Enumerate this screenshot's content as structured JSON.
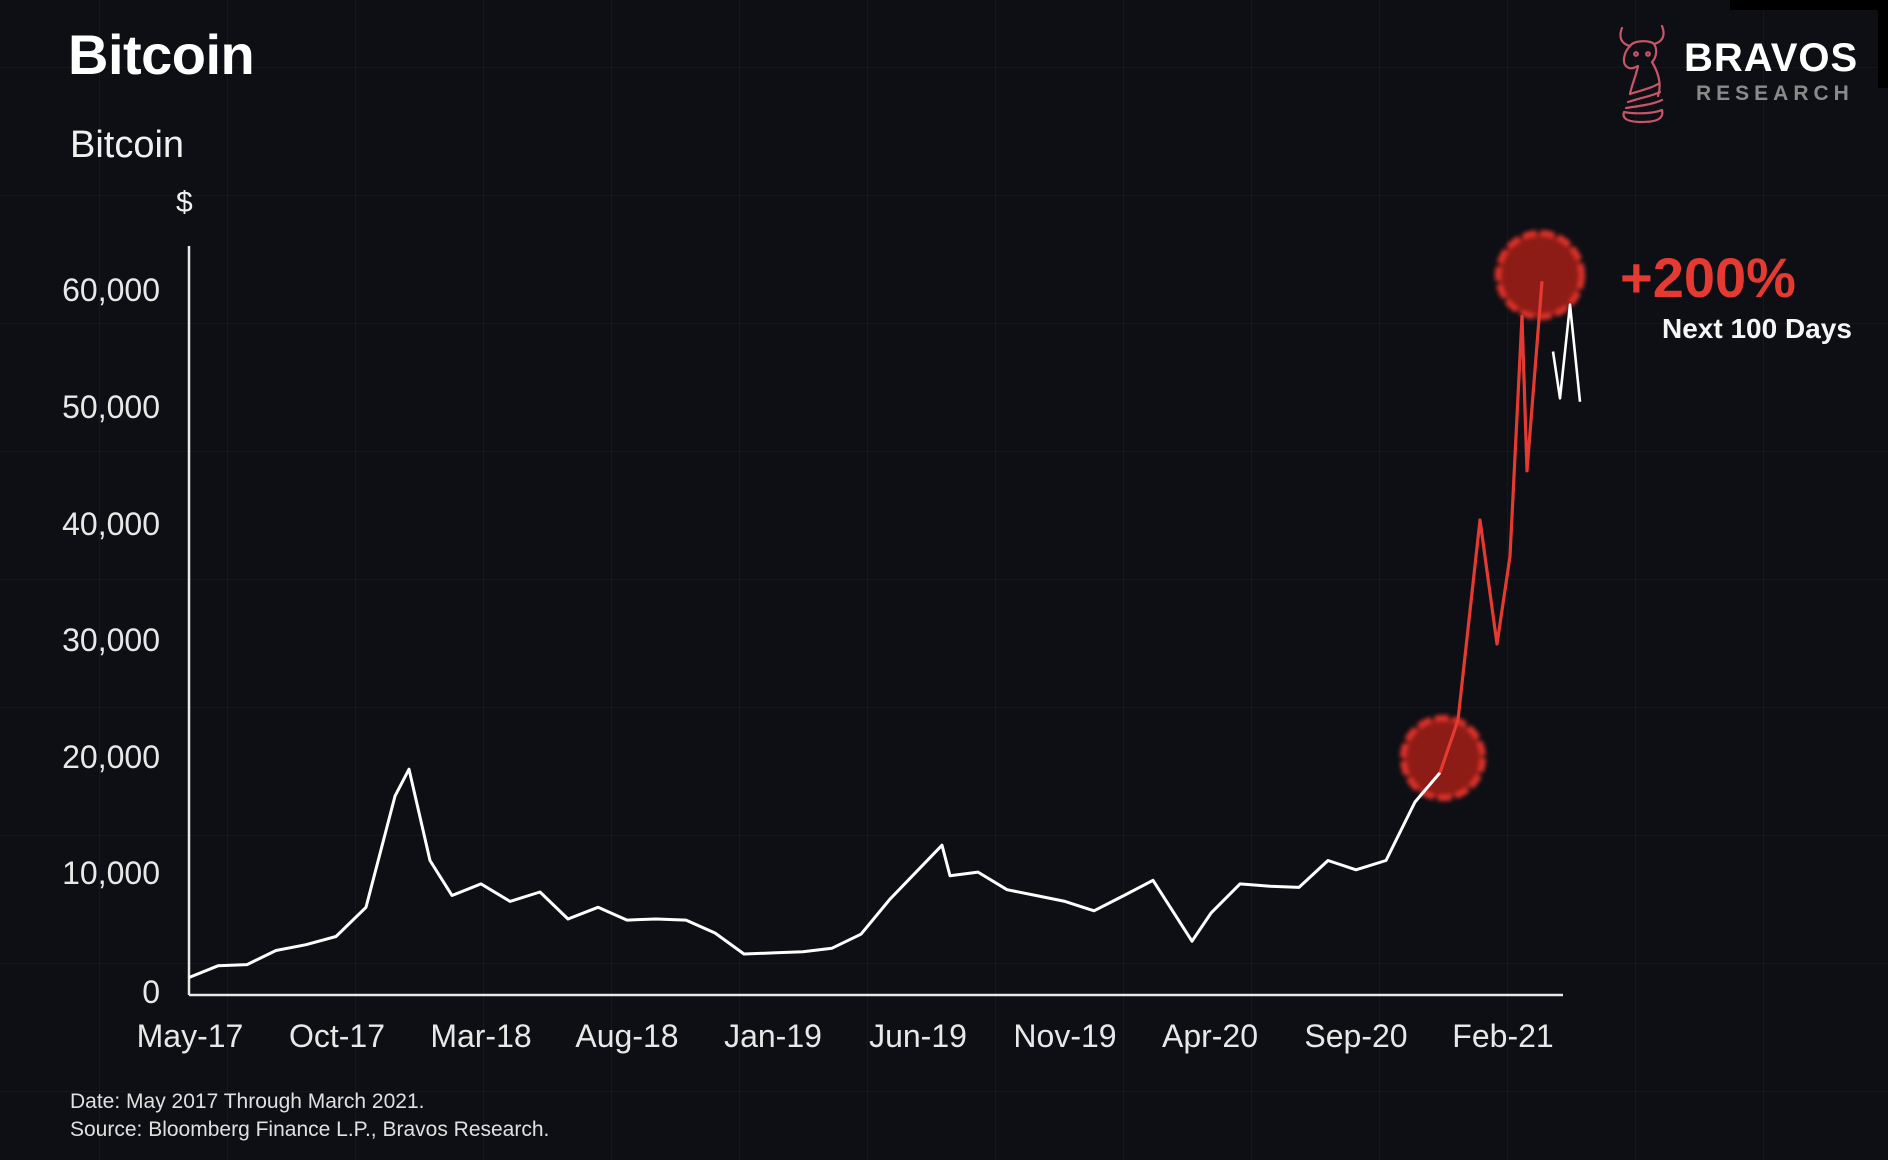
{
  "title": "Bitcoin",
  "subtitle": "Bitcoin",
  "unit_label": "$",
  "brand": {
    "name": "BRAVOS",
    "tagline": "RESEARCH",
    "logo_icon": "bull-knight-icon",
    "logo_color": "#c8566a"
  },
  "annotation": {
    "value": "+200%",
    "caption": "Next 100 Days",
    "color": "#e53a32"
  },
  "y_ticks": [
    "60,000",
    "50,000",
    "40,000",
    "30,000",
    "20,000",
    "10,000",
    "0"
  ],
  "x_ticks": [
    "May-17",
    "Oct-17",
    "Mar-18",
    "Aug-18",
    "Jan-19",
    "Jun-19",
    "Nov-19",
    "Apr-20",
    "Sep-20",
    "Feb-21"
  ],
  "footer": {
    "date_note": "Date: May 2017 Through March 2021.",
    "source_note": "Source: Bloomberg Finance L.P., Bravos Research."
  },
  "colors": {
    "background": "#0d0f14",
    "line": "#ffffff",
    "highlight": "#e53a32"
  },
  "chart_data": {
    "type": "line",
    "title": "Bitcoin",
    "subtitle": "Bitcoin",
    "xlabel": "",
    "ylabel": "$",
    "ylim": [
      0,
      65000
    ],
    "grid": true,
    "legend": "none",
    "x_tick_labels": [
      "May-17",
      "Oct-17",
      "Mar-18",
      "Aug-18",
      "Jan-19",
      "Jun-19",
      "Nov-19",
      "Apr-20",
      "Sep-20",
      "Feb-21"
    ],
    "y_tick_labels": [
      0,
      10000,
      20000,
      30000,
      40000,
      50000,
      60000
    ],
    "series": [
      {
        "name": "Bitcoin (white)",
        "color": "#ffffff",
        "x": [
          "May-17",
          "Jun-17",
          "Jul-17",
          "Aug-17",
          "Sep-17",
          "Oct-17",
          "Nov-17",
          "Dec-17",
          "Dec-17b",
          "Jan-18",
          "Feb-18",
          "Mar-18",
          "Apr-18",
          "May-18",
          "Jun-18",
          "Jul-18",
          "Aug-18",
          "Sep-18",
          "Oct-18",
          "Nov-18",
          "Dec-18",
          "Jan-19",
          "Feb-19",
          "Mar-19",
          "Apr-19",
          "May-19",
          "Jun-19",
          "Jul-19",
          "Aug-19",
          "Sep-19",
          "Oct-19",
          "Nov-19",
          "Dec-19",
          "Jan-20",
          "Feb-20",
          "Mar-20",
          "Apr-20",
          "May-20",
          "Jun-20",
          "Jul-20",
          "Aug-20",
          "Sep-20",
          "Oct-20",
          "Nov-20",
          "Dec-20"
        ],
        "values": [
          1500,
          2500,
          2600,
          3800,
          4300,
          5000,
          7500,
          17000,
          19300,
          11500,
          8500,
          9500,
          8000,
          8800,
          6500,
          7500,
          6400,
          6500,
          6400,
          5300,
          3500,
          3600,
          3700,
          4000,
          5200,
          8200,
          12800,
          10200,
          10500,
          9000,
          8500,
          8000,
          7200,
          8500,
          9800,
          4600,
          7000,
          9500,
          9300,
          9200,
          11500,
          10700,
          11500,
          16500,
          19000
        ]
      },
      {
        "name": "Bitcoin (highlighted 100-day run)",
        "color": "#e53a32",
        "x": [
          "Dec-20",
          "Dec-20b",
          "Jan-21",
          "Jan-21b",
          "Jan-21c",
          "Feb-21",
          "Feb-21b",
          "Mar-21"
        ],
        "values": [
          19000,
          23500,
          40600,
          30000,
          37500,
          58000,
          44800,
          61000
        ]
      },
      {
        "name": "Bitcoin (white tail)",
        "color": "#ffffff",
        "x": [
          "Mar-21",
          "Mar-21b",
          "Mar-21c",
          "Apr-21"
        ],
        "values": [
          55000,
          51000,
          59000,
          50700
        ]
      }
    ],
    "annotations": [
      {
        "text": "+200%",
        "color": "#e53a32"
      },
      {
        "text": "Next 100 Days",
        "color": "#ffffff"
      },
      {
        "marker": "circle",
        "at": "Dec-20",
        "value": 20000
      },
      {
        "marker": "circle",
        "at": "Mar-21",
        "value": 61000
      }
    ]
  }
}
